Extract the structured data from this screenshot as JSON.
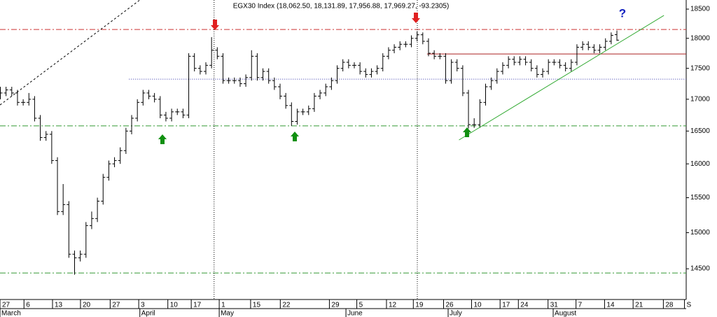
{
  "chart_data": {
    "type": "ohlc",
    "title": "EGX30 Index (18,062.50, 18,131.89, 17,956.88, 17,969.27, -93.2305)",
    "annotation": "?",
    "log_scale": true,
    "color": "#000000",
    "ylim": [
      14088,
      18659
    ],
    "yticks": [
      14500,
      15000,
      15500,
      16000,
      16500,
      17000,
      17500,
      18000,
      18500
    ],
    "xlim": [
      0,
      120.2
    ],
    "xticks": [
      {
        "value": 0,
        "label": "27"
      },
      {
        "value": 4.2,
        "label": "6"
      },
      {
        "value": 9.2,
        "label": "13"
      },
      {
        "value": 14.1,
        "label": "20"
      },
      {
        "value": 19.3,
        "label": "27"
      },
      {
        "value": 24.3,
        "label": "3"
      },
      {
        "value": 29.4,
        "label": "10"
      },
      {
        "value": 33.5,
        "label": "17"
      },
      {
        "value": 38.4,
        "label": "1"
      },
      {
        "value": 43.9,
        "label": "15"
      },
      {
        "value": 49.1,
        "label": "22"
      },
      {
        "value": 57.7,
        "label": "29"
      },
      {
        "value": 62.5,
        "label": "5"
      },
      {
        "value": 67.7,
        "label": "12"
      },
      {
        "value": 72.4,
        "label": "19"
      },
      {
        "value": 77.7,
        "label": "26"
      },
      {
        "value": 82.6,
        "label": "10"
      },
      {
        "value": 87.6,
        "label": "17"
      },
      {
        "value": 90.8,
        "label": "24"
      },
      {
        "value": 96,
        "label": "31"
      },
      {
        "value": 100.9,
        "label": "7"
      },
      {
        "value": 105.9,
        "label": "14"
      },
      {
        "value": 110.9,
        "label": "21"
      },
      {
        "value": 116.2,
        "label": "28"
      },
      {
        "value": 119.9,
        "label": "S"
      }
    ],
    "months": [
      {
        "value": 0,
        "label": "March"
      },
      {
        "value": 24.5,
        "label": "April"
      },
      {
        "value": 38.4,
        "label": "May"
      },
      {
        "value": 60.6,
        "label": "June"
      },
      {
        "value": 78.5,
        "label": "July"
      },
      {
        "value": 96.9,
        "label": "August"
      }
    ],
    "open": [
      17050,
      17100,
      17150,
      17100,
      16950,
      16950,
      17000,
      16700,
      16400,
      16450,
      16050,
      15300,
      15400,
      14700,
      14650,
      14700,
      15100,
      15200,
      15450,
      15800,
      16000,
      16050,
      16200,
      16500,
      16700,
      16950,
      17100,
      17050,
      17000,
      16750,
      16700,
      16800,
      16800,
      16750,
      17700,
      17500,
      17450,
      17550,
      17800,
      17700,
      17300,
      17300,
      17300,
      17250,
      17350,
      17700,
      17350,
      17450,
      17300,
      17200,
      17050,
      16900,
      16650,
      16800,
      16800,
      16850,
      17050,
      17100,
      17200,
      17300,
      17500,
      17600,
      17550,
      17550,
      17450,
      17400,
      17450,
      17500,
      17700,
      17800,
      17850,
      17900,
      17900,
      18000,
      18060,
      17950,
      17750,
      17700,
      17700,
      17300,
      17600,
      17500,
      17100,
      16600,
      16600,
      16950,
      17200,
      17300,
      17450,
      17550,
      17650,
      17600,
      17650,
      17600,
      17500,
      17400,
      17450,
      17600,
      17600,
      17550,
      17500,
      17600,
      17850,
      17900,
      17850,
      17800,
      17850,
      17950,
      18062.5
    ],
    "high": [
      17200,
      17200,
      17200,
      17150,
      17000,
      17100,
      17050,
      16750,
      16500,
      16500,
      16100,
      15700,
      15450,
      14750,
      14750,
      15150,
      15300,
      15500,
      15850,
      16050,
      16100,
      16250,
      16550,
      16750,
      17000,
      17150,
      17150,
      17100,
      17050,
      16800,
      16850,
      16850,
      16850,
      17750,
      17750,
      17550,
      17600,
      18020,
      17850,
      17750,
      17350,
      17350,
      17350,
      17400,
      17800,
      17750,
      17500,
      17500,
      17350,
      17250,
      17100,
      16950,
      16850,
      16850,
      16900,
      17100,
      17150,
      17250,
      17350,
      17550,
      17650,
      17650,
      17600,
      17600,
      17500,
      17500,
      17550,
      17750,
      17850,
      17900,
      17950,
      17950,
      18050,
      18120,
      18100,
      18000,
      17800,
      17750,
      17750,
      17650,
      17650,
      17550,
      17150,
      16700,
      17000,
      17250,
      17350,
      17500,
      17600,
      17700,
      17700,
      17700,
      17700,
      17650,
      17550,
      17500,
      17650,
      17650,
      17650,
      17600,
      17650,
      17900,
      17950,
      17950,
      17900,
      17900,
      18000,
      18100,
      18131.89
    ],
    "low": [
      17000,
      17050,
      17050,
      16900,
      16900,
      16900,
      16650,
      16350,
      16350,
      16000,
      15250,
      15250,
      14650,
      14420,
      14600,
      14650,
      15050,
      15150,
      15400,
      15750,
      15950,
      16000,
      16150,
      16450,
      16650,
      16900,
      17000,
      16950,
      16700,
      16650,
      16650,
      16750,
      16700,
      16700,
      17450,
      17400,
      17400,
      17500,
      17650,
      17250,
      17250,
      17250,
      17200,
      17200,
      17300,
      17300,
      17300,
      17250,
      17150,
      17000,
      16850,
      16580,
      16600,
      16750,
      16750,
      16800,
      17000,
      17050,
      17150,
      17250,
      17450,
      17500,
      17500,
      17400,
      17350,
      17350,
      17400,
      17450,
      17650,
      17750,
      17800,
      17850,
      17850,
      17950,
      17900,
      17700,
      17650,
      17650,
      17250,
      17250,
      17450,
      17050,
      16540,
      16550,
      16550,
      16900,
      17150,
      17250,
      17400,
      17500,
      17550,
      17550,
      17550,
      17450,
      17350,
      17350,
      17400,
      17550,
      17500,
      17450,
      17450,
      17550,
      17800,
      17800,
      17750,
      17750,
      17800,
      17900,
      17956.88
    ],
    "close": [
      17100,
      17150,
      17100,
      16950,
      16950,
      17000,
      16700,
      16400,
      16450,
      16050,
      15300,
      15400,
      14700,
      14650,
      14700,
      15100,
      15200,
      15450,
      15800,
      16000,
      16050,
      16200,
      16500,
      16700,
      16950,
      17100,
      17050,
      17000,
      16750,
      16700,
      16800,
      16800,
      16750,
      17700,
      17500,
      17450,
      17550,
      17800,
      17700,
      17300,
      17300,
      17300,
      17250,
      17350,
      17700,
      17350,
      17450,
      17300,
      17200,
      17050,
      16900,
      16650,
      16800,
      16800,
      16850,
      17050,
      17100,
      17200,
      17300,
      17500,
      17600,
      17550,
      17550,
      17450,
      17400,
      17450,
      17500,
      17700,
      17800,
      17850,
      17900,
      17900,
      18000,
      18060,
      17950,
      17750,
      17700,
      17700,
      17300,
      17600,
      17500,
      17100,
      16600,
      16600,
      16950,
      17200,
      17300,
      17450,
      17550,
      17650,
      17600,
      17650,
      17600,
      17500,
      17400,
      17450,
      17600,
      17600,
      17550,
      17500,
      17600,
      17850,
      17900,
      17850,
      17800,
      17850,
      17950,
      18050,
      17969.27
    ],
    "hlines": [
      {
        "value": 18150,
        "color": "#cc3333",
        "dash": "8 3 2 3"
      },
      {
        "value": 17323,
        "color": "#3333aa",
        "dash": "1 2",
        "from": 22.6
      },
      {
        "value": 16580,
        "color": "#339933",
        "dash": "8 3 2 3"
      },
      {
        "value": 14443,
        "color": "#339933",
        "dash": "8 3 2 3"
      },
      {
        "value": 17738,
        "color": "#aa2222",
        "dash": "none",
        "from": 74.8
      }
    ],
    "vlines": [
      37.5,
      73.1
    ],
    "trendlines": [
      {
        "from": [
          80.4,
          16363
        ],
        "to": [
          116.3,
          18391
        ],
        "color": "#33aa33",
        "dash": "none"
      },
      {
        "from": [
          0,
          16909
        ],
        "to": [
          24.5,
          18659
        ],
        "color": "#000000",
        "dash": "3 3"
      }
    ]
  }
}
